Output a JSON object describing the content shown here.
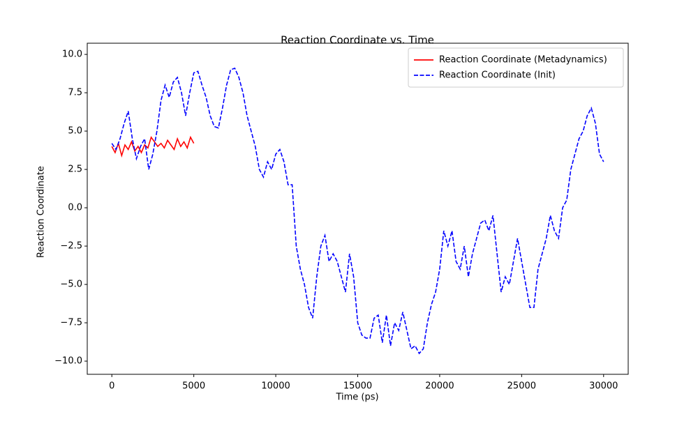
{
  "chart_data": {
    "type": "line",
    "title": "Reaction Coordinate vs. Time",
    "xlabel": "Time (ps)",
    "ylabel": "Reaction Coordinate",
    "xlim": [
      -1500,
      31500
    ],
    "ylim": [
      -10.86,
      10.73
    ],
    "xticks": [
      0,
      5000,
      10000,
      15000,
      20000,
      25000,
      30000
    ],
    "yticks": [
      {
        "value": -10,
        "label": "−10.0"
      },
      {
        "value": -7.5,
        "label": "−7.5"
      },
      {
        "value": -5,
        "label": "−5.0"
      },
      {
        "value": -2.5,
        "label": "−2.5"
      },
      {
        "value": 0,
        "label": "0.0"
      },
      {
        "value": 2.5,
        "label": "2.5"
      },
      {
        "value": 5,
        "label": "5.0"
      },
      {
        "value": 7.5,
        "label": "7.5"
      },
      {
        "value": 10,
        "label": "10.0"
      }
    ],
    "legend": "upper right",
    "series": [
      {
        "name": "Reaction Coordinate (Metadynamics)",
        "color": "#ff0000",
        "dash": "solid",
        "x": [
          0,
          200,
          400,
          600,
          800,
          1000,
          1200,
          1400,
          1600,
          1800,
          2000,
          2200,
          2400,
          2600,
          2800,
          3000,
          3200,
          3400,
          3600,
          3800,
          4000,
          4200,
          4400,
          4600,
          4800,
          5000
        ],
        "values": [
          4.0,
          3.6,
          4.2,
          3.4,
          4.1,
          3.8,
          4.3,
          3.7,
          4.0,
          3.6,
          4.1,
          3.9,
          4.6,
          4.3,
          4.0,
          4.2,
          3.9,
          4.4,
          4.1,
          3.8,
          4.5,
          4.0,
          4.3,
          3.9,
          4.6,
          4.2
        ]
      },
      {
        "name": "Reaction Coordinate (Init)",
        "color": "#0000ff",
        "dash": "dashed",
        "x": [
          0,
          250,
          500,
          750,
          1000,
          1250,
          1500,
          1750,
          2000,
          2250,
          2500,
          2750,
          3000,
          3250,
          3500,
          3750,
          4000,
          4250,
          4500,
          4750,
          5000,
          5250,
          5500,
          5750,
          6000,
          6250,
          6500,
          6750,
          7000,
          7250,
          7500,
          7750,
          8000,
          8250,
          8500,
          8750,
          9000,
          9250,
          9500,
          9750,
          10000,
          10250,
          10500,
          10750,
          11000,
          11250,
          11500,
          11750,
          12000,
          12250,
          12500,
          12750,
          13000,
          13250,
          13500,
          13750,
          14000,
          14250,
          14500,
          14750,
          15000,
          15250,
          15500,
          15750,
          16000,
          16250,
          16500,
          16750,
          17000,
          17250,
          17500,
          17750,
          18000,
          18250,
          18500,
          18750,
          19000,
          19250,
          19500,
          19750,
          20000,
          20250,
          20500,
          20750,
          21000,
          21250,
          21500,
          21750,
          22000,
          22250,
          22500,
          22750,
          23000,
          23250,
          23500,
          23750,
          24000,
          24250,
          24500,
          24750,
          25000,
          25250,
          25500,
          25750,
          26000,
          26250,
          26500,
          26750,
          27000,
          27250,
          27500,
          27750,
          28000,
          28250,
          28500,
          28750,
          29000,
          29250,
          29500,
          29750,
          30000
        ],
        "values": [
          4.2,
          3.8,
          4.5,
          5.5,
          6.3,
          4.5,
          3.2,
          4.0,
          4.5,
          2.5,
          3.5,
          5.0,
          7.0,
          8.0,
          7.2,
          8.2,
          8.5,
          7.5,
          6.0,
          7.5,
          8.8,
          8.9,
          8.0,
          7.2,
          6.0,
          5.3,
          5.2,
          6.5,
          8.0,
          9.0,
          9.1,
          8.5,
          7.5,
          6.0,
          5.0,
          4.0,
          2.5,
          2.0,
          3.0,
          2.5,
          3.5,
          3.8,
          3.0,
          1.5,
          1.5,
          -2.5,
          -4.0,
          -5.0,
          -6.5,
          -7.2,
          -4.5,
          -2.5,
          -1.8,
          -3.5,
          -3.0,
          -3.5,
          -4.5,
          -5.5,
          -3.0,
          -4.5,
          -7.5,
          -8.3,
          -8.5,
          -8.5,
          -7.2,
          -7.0,
          -8.8,
          -7.0,
          -9.0,
          -7.5,
          -8.0,
          -6.8,
          -8.0,
          -9.2,
          -9.0,
          -9.5,
          -9.2,
          -7.5,
          -6.3,
          -5.5,
          -4.0,
          -1.5,
          -2.5,
          -1.5,
          -3.5,
          -4.0,
          -2.5,
          -4.5,
          -3.0,
          -2.0,
          -1.0,
          -0.8,
          -1.5,
          -0.5,
          -3.0,
          -5.5,
          -4.5,
          -5.0,
          -3.5,
          -2.0,
          -3.5,
          -5.0,
          -6.5,
          -6.5,
          -4.0,
          -3.0,
          -2.0,
          -0.5,
          -1.5,
          -2.0,
          0.0,
          0.5,
          2.5,
          3.5,
          4.5,
          5.0,
          6.0,
          6.5,
          5.5,
          3.5,
          3.0
        ]
      }
    ]
  }
}
